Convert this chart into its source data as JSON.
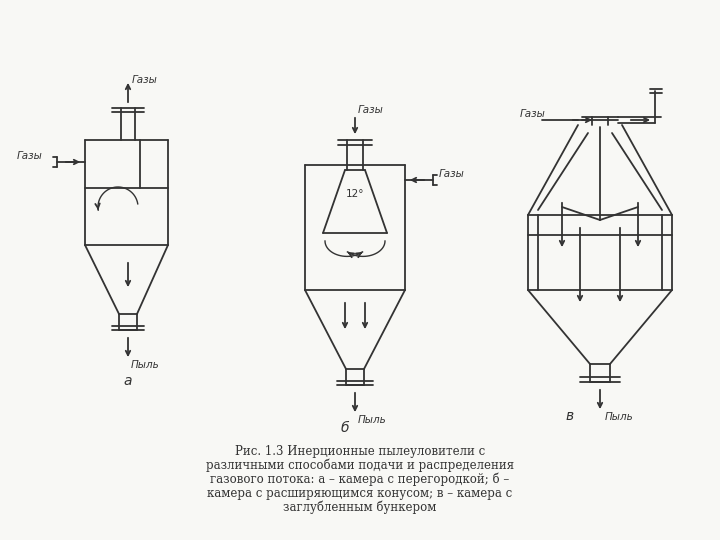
{
  "bg_color": "#f8f8f5",
  "line_color": "#333333",
  "label_a": "а",
  "label_b": "б",
  "label_v": "в",
  "text_gazy": "Газы",
  "text_pyl": "Пыль",
  "text_120": "12°",
  "caption_lines": [
    "Рис. 1.3 Инерционные пылеуловители с",
    "различными способами подачи и распределения",
    "газового потока: а – камера с перегородкой; б –",
    "камера с расширяющимся конусом; в – камера с",
    "заглубленным бункером"
  ],
  "figsize": [
    7.2,
    5.4
  ],
  "dpi": 100
}
